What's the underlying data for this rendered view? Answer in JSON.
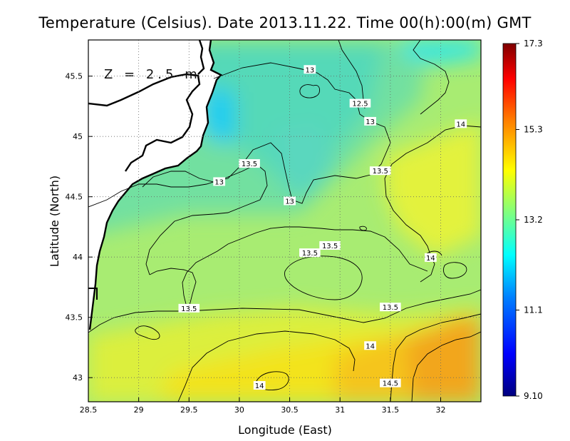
{
  "title": "Temperature (Celsius). Date 2013.11.22. Time 00(h):00(m) GMT",
  "depth_label": "Z = 2.5 m",
  "chart_data": {
    "type": "heatmap",
    "map": "sea surface temperature contour map",
    "xlabel": "Longitude (East)",
    "ylabel": "Latitude (North)",
    "xlim": [
      28.5,
      32.4
    ],
    "ylim": [
      42.8,
      45.8
    ],
    "xticks": [
      28.5,
      29,
      29.5,
      30,
      30.5,
      31,
      31.5,
      32
    ],
    "xtick_labels": [
      "28.5",
      "29",
      "29.5",
      "30",
      "30.5",
      "31",
      "31.5",
      "32"
    ],
    "yticks": [
      43,
      43.5,
      44,
      44.5,
      45,
      45.5
    ],
    "ytick_labels": [
      "43",
      "43.5",
      "44",
      "44.5",
      "45",
      "45.5"
    ],
    "grid": true,
    "colorbar": {
      "min": 9.1,
      "max": 17.3,
      "tick_labels": [
        "17.3",
        "15.3",
        "13.2",
        "11.1",
        "9.10"
      ],
      "tick_values": [
        17.3,
        15.3,
        13.2,
        11.1,
        9.1
      ],
      "colors": [
        "#00007f",
        "#0000ff",
        "#0080ff",
        "#00ffff",
        "#7fff7f",
        "#ffff00",
        "#ff8000",
        "#ff0000",
        "#7f0000"
      ]
    },
    "contour_labels": [
      {
        "text": "13",
        "lon": 30.7,
        "lat": 45.55
      },
      {
        "text": "12.5",
        "lon": 31.2,
        "lat": 45.27
      },
      {
        "text": "13",
        "lon": 31.3,
        "lat": 45.12
      },
      {
        "text": "14",
        "lon": 32.2,
        "lat": 45.1
      },
      {
        "text": "13.5",
        "lon": 30.1,
        "lat": 44.77
      },
      {
        "text": "13.5",
        "lon": 31.4,
        "lat": 44.71
      },
      {
        "text": "13",
        "lon": 29.8,
        "lat": 44.62
      },
      {
        "text": "13",
        "lon": 30.5,
        "lat": 44.46
      },
      {
        "text": "13.5",
        "lon": 30.9,
        "lat": 44.09
      },
      {
        "text": "13.5",
        "lon": 30.7,
        "lat": 44.03
      },
      {
        "text": "14",
        "lon": 31.9,
        "lat": 43.99
      },
      {
        "text": "13.5",
        "lon": 31.5,
        "lat": 43.58
      },
      {
        "text": "13.5",
        "lon": 29.5,
        "lat": 43.57
      },
      {
        "text": "14",
        "lon": 31.3,
        "lat": 43.26
      },
      {
        "text": "14.5",
        "lon": 31.5,
        "lat": 42.95
      },
      {
        "text": "14",
        "lon": 30.2,
        "lat": 42.93
      }
    ]
  }
}
